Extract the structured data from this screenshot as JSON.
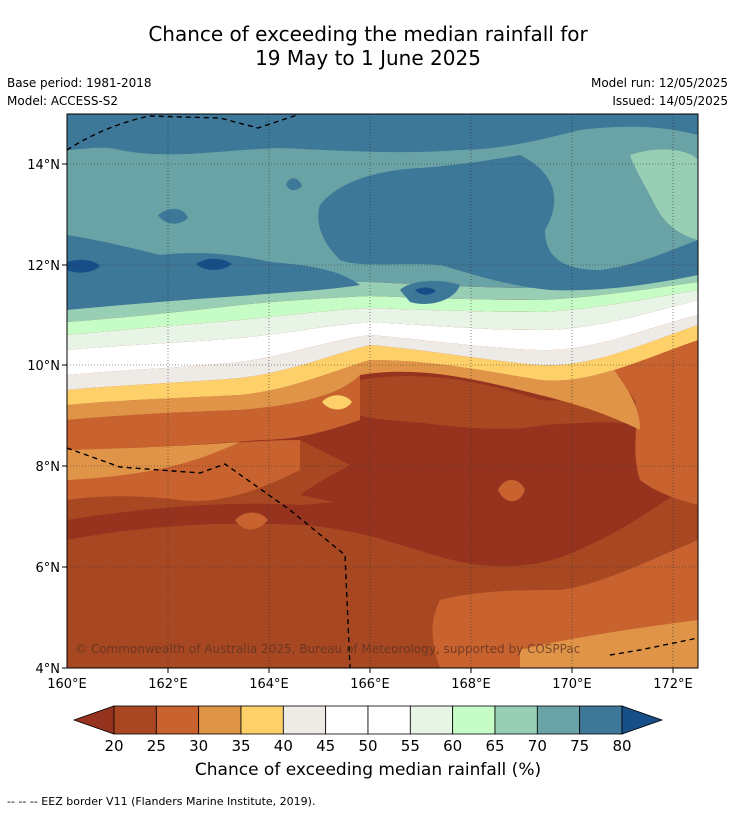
{
  "title_line1": "Chance of exceeding the median rainfall for",
  "title_line2": "19 May to 1 June 2025",
  "meta": {
    "base_period": "Base period: 1981-2018",
    "model": "Model: ACCESS-S2",
    "model_run": "Model run: 12/05/2025",
    "issued": "Issued: 14/05/2025"
  },
  "map": {
    "lon_ticks": [
      "160°E",
      "162°E",
      "164°E",
      "166°E",
      "168°E",
      "170°E",
      "172°E"
    ],
    "lat_ticks": [
      "14°N",
      "12°N",
      "10°N",
      "8°N",
      "6°N",
      "4°N"
    ],
    "lon_range": [
      160,
      172.5
    ],
    "lat_range": [
      4,
      15
    ],
    "copyright": "© Commonwealth of Australia 2025, Bureau of Meteorology, supported by COSPPac"
  },
  "colorbar": {
    "title": "Chance of exceeding median rainfall (%)",
    "ticks": [
      "20",
      "25",
      "30",
      "35",
      "40",
      "45",
      "50",
      "55",
      "60",
      "65",
      "70",
      "75",
      "80"
    ],
    "colors": [
      "#a84822",
      "#c8622f",
      "#e09448",
      "#fdd06a",
      "#eeeae5",
      "#ffffff",
      "#ffffff",
      "#e8f5e6",
      "#c6fcc6",
      "#98cfb4",
      "#6aa3a5",
      "#3e7898"
    ],
    "under_color": "#96331e",
    "over_color": "#164e88"
  },
  "legend_footer": "--  --  -- EEZ border V11 (Flanders Marine Institute, 2019)."
}
